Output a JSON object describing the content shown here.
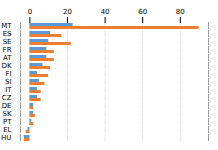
{
  "chart_data": {
    "type": "bar",
    "orientation": "horizontal",
    "categories": [
      "MT",
      "ES",
      "SE",
      "FR",
      "AT",
      "DK",
      "FI",
      "SI",
      "IT",
      "CZ",
      "DE",
      "SK",
      "PT",
      "EL",
      "HU"
    ],
    "series": [
      {
        "color": "#5B9BD5",
        "values": [
          23,
          11,
          10,
          9,
          9,
          7,
          4,
          5,
          4,
          4,
          2,
          2,
          1,
          -1,
          -3
        ]
      },
      {
        "color": "#ED7D31",
        "values": [
          90,
          17,
          22,
          13,
          13,
          11,
          10,
          8,
          6,
          6,
          2,
          3,
          2,
          -2,
          -3
        ]
      }
    ],
    "xlim": [
      -5,
      95
    ],
    "xticks": [
      0,
      20,
      40,
      60,
      80
    ],
    "grid": true
  }
}
